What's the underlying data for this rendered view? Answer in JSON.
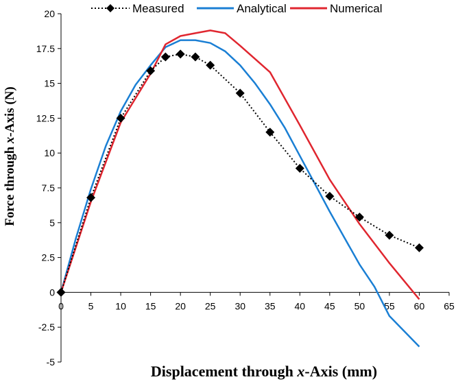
{
  "chart_data": {
    "type": "line",
    "xlabel": {
      "pre": "Displacement through ",
      "var": "x",
      "post": "-Axis (mm)"
    },
    "ylabel": {
      "pre": "Force through ",
      "var": "x",
      "post": "-Axis (N)"
    },
    "xlim": [
      0,
      65
    ],
    "ylim": [
      -5,
      20
    ],
    "x_ticks": [
      0,
      5,
      10,
      15,
      20,
      25,
      30,
      35,
      40,
      45,
      50,
      55,
      60,
      65
    ],
    "y_ticks": [
      -5,
      -2.5,
      0,
      2.5,
      5,
      7.5,
      10,
      12.5,
      15,
      17.5,
      20
    ],
    "grid": false,
    "legend_position": "top",
    "series": [
      {
        "name": "Measured",
        "color": "#000000",
        "style": "dotted-diamond",
        "x": [
          0,
          5,
          10,
          15,
          17.5,
          20,
          22.5,
          25,
          30,
          35,
          40,
          45,
          50,
          55,
          60
        ],
        "y": [
          0,
          6.8,
          12.5,
          15.9,
          16.9,
          17.1,
          16.9,
          16.3,
          14.3,
          11.5,
          8.9,
          6.9,
          5.4,
          4.1,
          3.2
        ]
      },
      {
        "name": "Analytical",
        "color": "#1a7fd4",
        "style": "solid",
        "x": [
          0,
          2.5,
          5,
          7.5,
          10,
          12.5,
          15,
          17.5,
          20,
          22.5,
          25,
          27.5,
          30,
          32.5,
          35,
          37.5,
          40,
          42.5,
          45,
          47.5,
          50,
          52.5,
          55,
          57.5,
          60
        ],
        "y": [
          0,
          3.9,
          7.4,
          10.5,
          13.0,
          14.9,
          16.3,
          17.6,
          18.1,
          18.1,
          17.9,
          17.3,
          16.3,
          15.0,
          13.5,
          11.8,
          9.8,
          7.8,
          5.8,
          3.9,
          2.0,
          0.4,
          -1.7,
          -2.8,
          -3.9
        ]
      },
      {
        "name": "Numerical",
        "color": "#e0262f",
        "style": "solid",
        "x": [
          0,
          5,
          10,
          15,
          17.5,
          20,
          22.5,
          25,
          27.5,
          30,
          35,
          40,
          45,
          50,
          55,
          60
        ],
        "y": [
          0,
          6.5,
          12.2,
          15.7,
          17.8,
          18.4,
          18.6,
          18.8,
          18.6,
          17.7,
          15.8,
          12.0,
          8.1,
          4.9,
          2.1,
          -0.5
        ]
      }
    ]
  }
}
